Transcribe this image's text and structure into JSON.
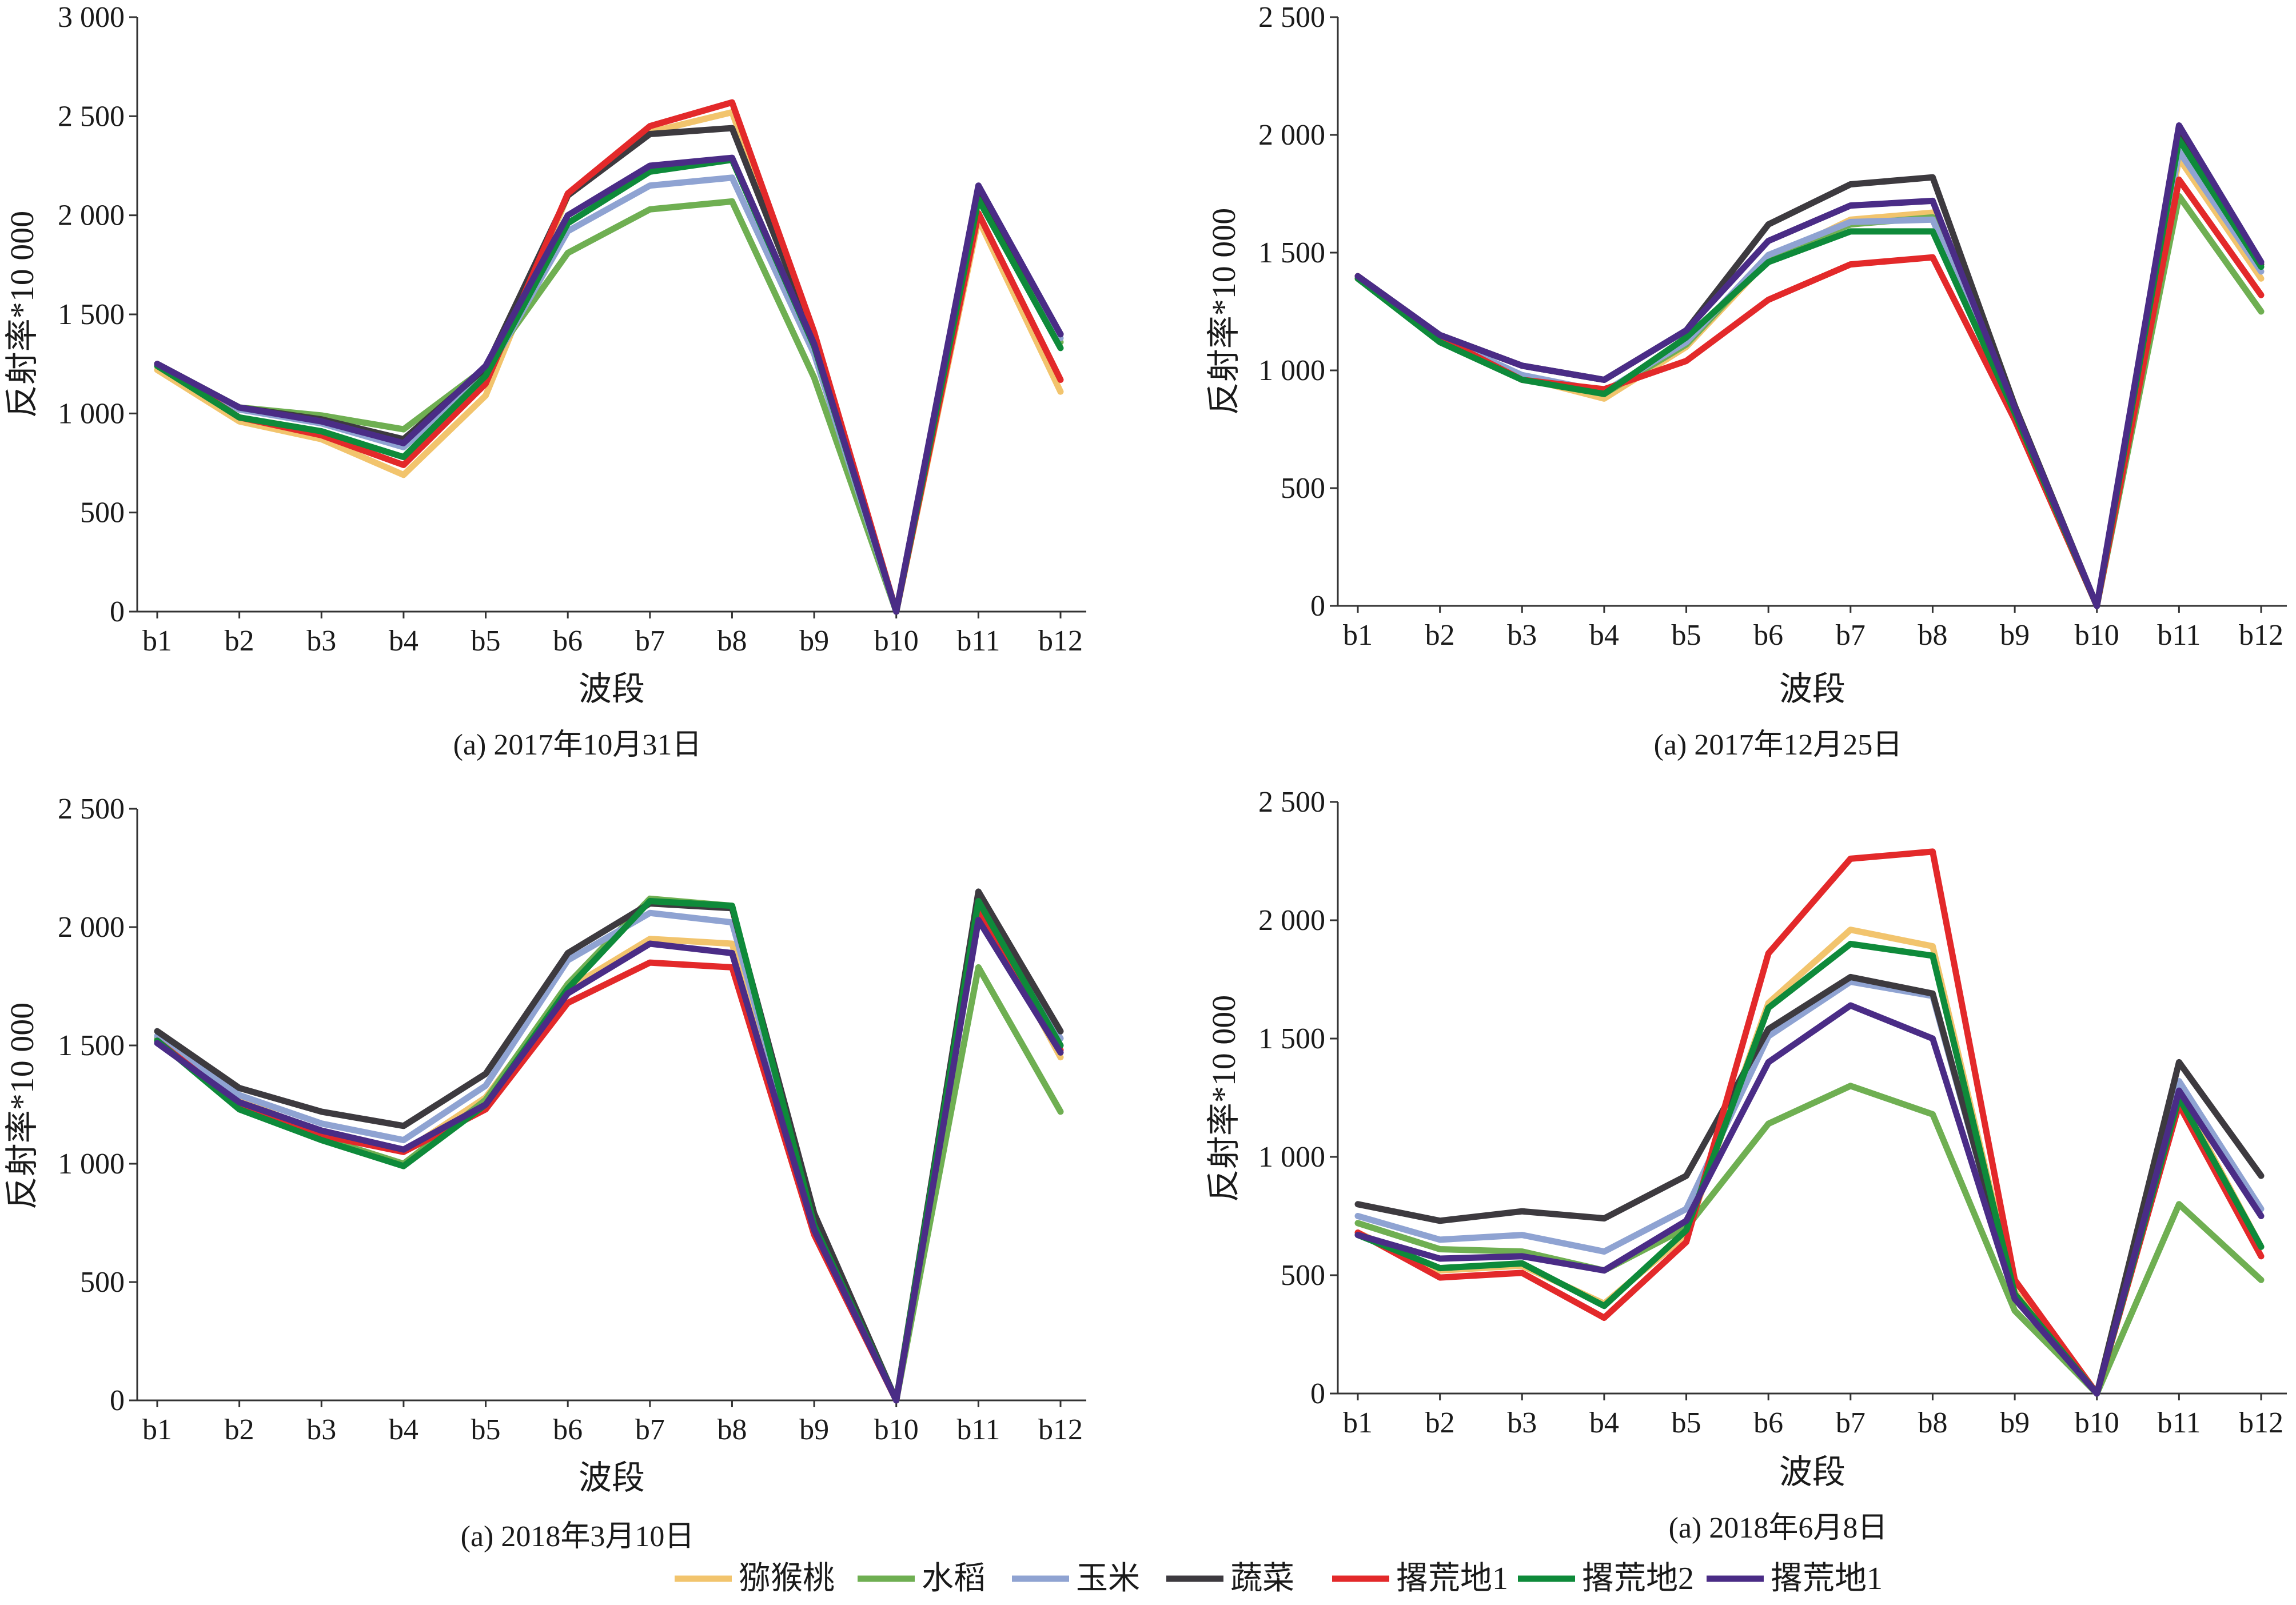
{
  "legend": {
    "items": [
      {
        "label": "猕猴桃",
        "color": "#F2C46D"
      },
      {
        "label": "水稻",
        "color": "#6FAF52"
      },
      {
        "label": "玉米",
        "color": "#8FA3D2"
      },
      {
        "label": "蔬菜",
        "color": "#3D3A3F"
      },
      {
        "label": "撂荒地1",
        "color": "#E3292A"
      },
      {
        "label": "撂荒地2",
        "color": "#0E8A3A"
      },
      {
        "label": "撂荒地1",
        "color": "#4A2C86"
      }
    ]
  },
  "chart_data": [
    {
      "type": "line",
      "title": "(a) 2017年10月31日",
      "xlabel": "波段",
      "ylabel": "反射率*10 000",
      "categories": [
        "b1",
        "b2",
        "b3",
        "b4",
        "b5",
        "b6",
        "b7",
        "b8",
        "b9",
        "b10",
        "b11",
        "b12"
      ],
      "ylim": [
        0,
        3000
      ],
      "yticks": [
        0,
        500,
        1000,
        1500,
        2000,
        2500,
        3000
      ],
      "ytick_labels": [
        "0",
        "500",
        "1 000",
        "1 500",
        "2 000",
        "2 500",
        "3 000"
      ],
      "grid": false,
      "series": [
        {
          "name": "猕猴桃",
          "color": "#F2C46D",
          "values": [
            1220,
            960,
            870,
            690,
            1090,
            2100,
            2420,
            2520,
            1380,
            0,
            1980,
            1110
          ]
        },
        {
          "name": "水稻",
          "color": "#6FAF52",
          "values": [
            1250,
            1030,
            990,
            920,
            1230,
            1810,
            2030,
            2070,
            1180,
            0,
            2100,
            1360
          ]
        },
        {
          "name": "玉米",
          "color": "#8FA3D2",
          "values": [
            1250,
            1020,
            950,
            830,
            1190,
            1920,
            2150,
            2190,
            1300,
            0,
            2130,
            1380
          ]
        },
        {
          "name": "蔬菜",
          "color": "#3D3A3F",
          "values": [
            1250,
            1030,
            970,
            870,
            1230,
            2100,
            2410,
            2440,
            1390,
            0,
            2140,
            1400
          ]
        },
        {
          "name": "撂荒地1",
          "color": "#E3292A",
          "values": [
            1250,
            980,
            890,
            740,
            1150,
            2110,
            2450,
            2570,
            1410,
            0,
            2010,
            1170
          ]
        },
        {
          "name": "撂荒地2",
          "color": "#0E8A3A",
          "values": [
            1240,
            980,
            910,
            780,
            1190,
            1960,
            2220,
            2280,
            1340,
            0,
            2080,
            1330
          ]
        },
        {
          "name": "撂荒地1",
          "color": "#4A2C86",
          "values": [
            1250,
            1030,
            960,
            850,
            1240,
            2000,
            2250,
            2290,
            1350,
            0,
            2150,
            1400
          ]
        }
      ]
    },
    {
      "type": "line",
      "title": "(a) 2017年12月25日",
      "xlabel": "波段",
      "ylabel": "反射率*10 000",
      "categories": [
        "b1",
        "b2",
        "b3",
        "b4",
        "b5",
        "b6",
        "b7",
        "b8",
        "b9",
        "b10",
        "b11",
        "b12"
      ],
      "ylim": [
        0,
        2500
      ],
      "yticks": [
        0,
        500,
        1000,
        1500,
        2000,
        2500
      ],
      "ytick_labels": [
        "0",
        "500",
        "1 000",
        "1 500",
        "2 000",
        "2 500"
      ],
      "grid": false,
      "series": [
        {
          "name": "猕猴桃",
          "color": "#F2C46D",
          "values": [
            1390,
            1130,
            970,
            880,
            1100,
            1470,
            1640,
            1670,
            830,
            0,
            1900,
            1390
          ]
        },
        {
          "name": "水稻",
          "color": "#6FAF52",
          "values": [
            1390,
            1130,
            970,
            900,
            1110,
            1480,
            1620,
            1650,
            820,
            0,
            1740,
            1250
          ]
        },
        {
          "name": "玉米",
          "color": "#8FA3D2",
          "values": [
            1400,
            1140,
            980,
            910,
            1120,
            1490,
            1630,
            1640,
            820,
            0,
            1930,
            1420
          ]
        },
        {
          "name": "蔬菜",
          "color": "#3D3A3F",
          "values": [
            1400,
            1150,
            1020,
            960,
            1170,
            1620,
            1790,
            1820,
            850,
            0,
            2000,
            1450
          ]
        },
        {
          "name": "撂荒地1",
          "color": "#E3292A",
          "values": [
            1400,
            1140,
            960,
            920,
            1040,
            1300,
            1450,
            1480,
            790,
            0,
            1810,
            1320
          ]
        },
        {
          "name": "撂荒地2",
          "color": "#0E8A3A",
          "values": [
            1390,
            1120,
            960,
            900,
            1140,
            1460,
            1590,
            1590,
            820,
            0,
            1980,
            1440
          ]
        },
        {
          "name": "撂荒地1",
          "color": "#4A2C86",
          "values": [
            1400,
            1150,
            1020,
            960,
            1170,
            1550,
            1700,
            1720,
            840,
            0,
            2040,
            1460
          ]
        }
      ]
    },
    {
      "type": "line",
      "title": "(a) 2018年3月10日",
      "xlabel": "波段",
      "ylabel": "反射率*10 000",
      "categories": [
        "b1",
        "b2",
        "b3",
        "b4",
        "b5",
        "b6",
        "b7",
        "b8",
        "b9",
        "b10",
        "b11",
        "b12"
      ],
      "ylim": [
        0,
        2500
      ],
      "yticks": [
        0,
        500,
        1000,
        1500,
        2000,
        2500
      ],
      "ytick_labels": [
        "0",
        "500",
        "1 000",
        "1 500",
        "2 000",
        "2 500"
      ],
      "grid": false,
      "series": [
        {
          "name": "猕猴桃",
          "color": "#F2C46D",
          "values": [
            1520,
            1270,
            1130,
            1050,
            1280,
            1740,
            1950,
            1930,
            760,
            0,
            2090,
            1450
          ]
        },
        {
          "name": "水稻",
          "color": "#6FAF52",
          "values": [
            1530,
            1240,
            1110,
            1000,
            1270,
            1760,
            2120,
            2090,
            750,
            0,
            1830,
            1220
          ]
        },
        {
          "name": "玉米",
          "color": "#8FA3D2",
          "values": [
            1540,
            1290,
            1170,
            1100,
            1330,
            1860,
            2060,
            2020,
            770,
            0,
            2090,
            1530
          ]
        },
        {
          "name": "蔬菜",
          "color": "#3D3A3F",
          "values": [
            1560,
            1320,
            1220,
            1160,
            1380,
            1890,
            2100,
            2080,
            790,
            0,
            2150,
            1560
          ]
        },
        {
          "name": "撂荒地1",
          "color": "#E3292A",
          "values": [
            1520,
            1250,
            1120,
            1050,
            1230,
            1680,
            1850,
            1830,
            700,
            0,
            2070,
            1480
          ]
        },
        {
          "name": "撂荒地2",
          "color": "#0E8A3A",
          "values": [
            1520,
            1230,
            1100,
            990,
            1250,
            1740,
            2110,
            2090,
            740,
            0,
            2110,
            1500
          ]
        },
        {
          "name": "撂荒地1",
          "color": "#4A2C86",
          "values": [
            1510,
            1260,
            1140,
            1060,
            1250,
            1720,
            1930,
            1890,
            720,
            0,
            2030,
            1470
          ]
        }
      ]
    },
    {
      "type": "line",
      "title": "(a) 2018年6月8日",
      "xlabel": "波段",
      "ylabel": "反射率*10 000",
      "categories": [
        "b1",
        "b2",
        "b3",
        "b4",
        "b5",
        "b6",
        "b7",
        "b8",
        "b9",
        "b10",
        "b11",
        "b12"
      ],
      "ylim": [
        0,
        2500
      ],
      "yticks": [
        0,
        500,
        1000,
        1500,
        2000,
        2500
      ],
      "ytick_labels": [
        "0",
        "500",
        "1 000",
        "1 500",
        "2 000",
        "2 500"
      ],
      "grid": false,
      "series": [
        {
          "name": "猕猴桃",
          "color": "#F2C46D",
          "values": [
            680,
            520,
            540,
            380,
            670,
            1650,
            1960,
            1890,
            430,
            0,
            1270,
            620
          ]
        },
        {
          "name": "水稻",
          "color": "#6FAF52",
          "values": [
            720,
            610,
            600,
            520,
            700,
            1140,
            1300,
            1180,
            350,
            0,
            800,
            480
          ]
        },
        {
          "name": "玉米",
          "color": "#8FA3D2",
          "values": [
            750,
            650,
            670,
            600,
            780,
            1510,
            1740,
            1680,
            420,
            0,
            1320,
            780
          ]
        },
        {
          "name": "蔬菜",
          "color": "#3D3A3F",
          "values": [
            800,
            730,
            770,
            740,
            920,
            1540,
            1760,
            1690,
            420,
            0,
            1400,
            920
          ]
        },
        {
          "name": "撂荒地1",
          "color": "#E3292A",
          "values": [
            680,
            490,
            510,
            320,
            640,
            1860,
            2260,
            2290,
            480,
            0,
            1220,
            580
          ]
        },
        {
          "name": "撂荒地2",
          "color": "#0E8A3A",
          "values": [
            670,
            530,
            550,
            370,
            690,
            1630,
            1900,
            1850,
            420,
            0,
            1250,
            620
          ]
        },
        {
          "name": "撂荒地1",
          "color": "#4A2C86",
          "values": [
            670,
            570,
            580,
            520,
            730,
            1400,
            1640,
            1500,
            400,
            0,
            1280,
            750
          ]
        }
      ]
    }
  ]
}
